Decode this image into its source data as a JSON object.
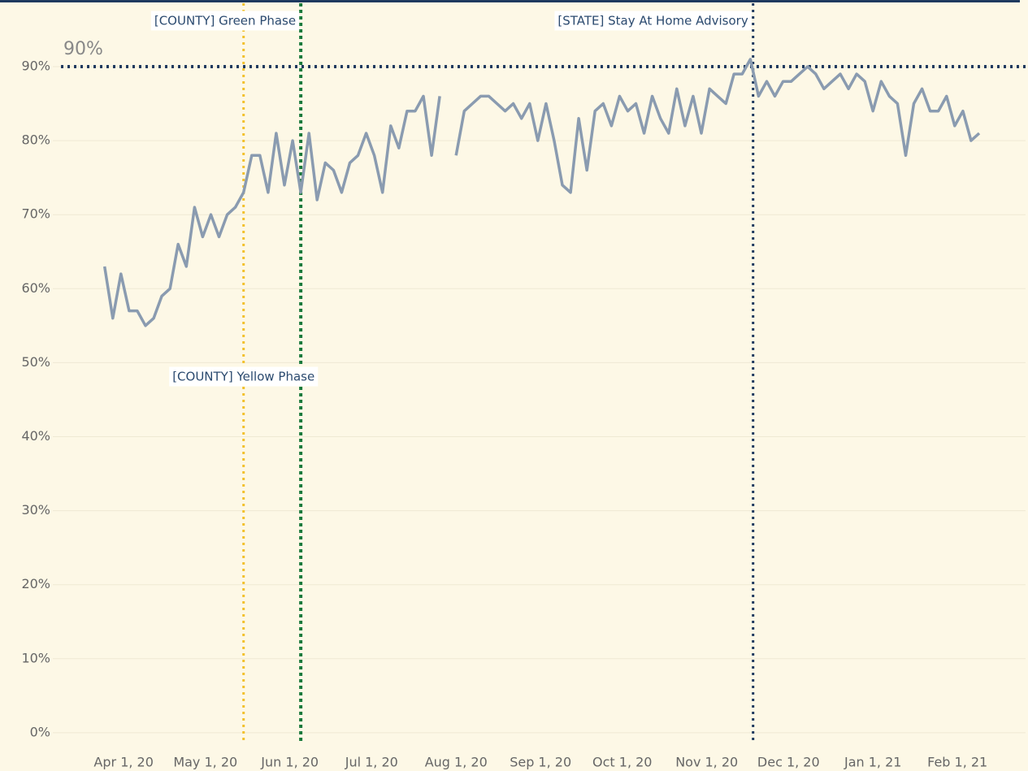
{
  "chart_data": {
    "type": "line",
    "x": [
      "2020-03-25",
      "2020-03-28",
      "2020-03-31",
      "2020-04-03",
      "2020-04-06",
      "2020-04-09",
      "2020-04-12",
      "2020-04-15",
      "2020-04-18",
      "2020-04-21",
      "2020-04-24",
      "2020-04-27",
      "2020-04-30",
      "2020-05-03",
      "2020-05-06",
      "2020-05-09",
      "2020-05-12",
      "2020-05-15",
      "2020-05-18",
      "2020-05-21",
      "2020-05-24",
      "2020-05-27",
      "2020-05-30",
      "2020-06-02",
      "2020-06-05",
      "2020-06-08",
      "2020-06-11",
      "2020-06-14",
      "2020-06-17",
      "2020-06-20",
      "2020-06-23",
      "2020-06-26",
      "2020-06-29",
      "2020-07-02",
      "2020-07-05",
      "2020-07-08",
      "2020-07-11",
      "2020-07-14",
      "2020-07-17",
      "2020-07-20",
      "2020-07-23",
      "2020-07-26",
      "2020-07-29",
      "2020-08-01",
      "2020-08-04",
      "2020-08-07",
      "2020-08-10",
      "2020-08-13",
      "2020-08-16",
      "2020-08-19",
      "2020-08-22",
      "2020-08-25",
      "2020-08-28",
      "2020-08-31",
      "2020-09-03",
      "2020-09-06",
      "2020-09-09",
      "2020-09-12",
      "2020-09-15",
      "2020-09-18",
      "2020-09-21",
      "2020-09-24",
      "2020-09-27",
      "2020-09-30",
      "2020-10-03",
      "2020-10-06",
      "2020-10-09",
      "2020-10-12",
      "2020-10-15",
      "2020-10-18",
      "2020-10-21",
      "2020-10-24",
      "2020-10-27",
      "2020-10-30",
      "2020-11-02",
      "2020-11-05",
      "2020-11-08",
      "2020-11-11",
      "2020-11-14",
      "2020-11-17",
      "2020-11-20",
      "2020-11-23",
      "2020-11-26",
      "2020-11-29",
      "2020-12-02",
      "2020-12-05",
      "2020-12-08",
      "2020-12-11",
      "2020-12-14",
      "2020-12-17",
      "2020-12-20",
      "2020-12-23",
      "2020-12-26",
      "2020-12-29",
      "2021-01-01",
      "2021-01-04",
      "2021-01-07",
      "2021-01-10",
      "2021-01-13",
      "2021-01-16",
      "2021-01-19",
      "2021-01-22",
      "2021-01-25",
      "2021-01-28",
      "2021-01-31",
      "2021-02-03",
      "2021-02-06",
      "2021-02-09"
    ],
    "values": [
      63,
      56,
      62,
      57,
      57,
      55,
      56,
      59,
      60,
      66,
      63,
      71,
      67,
      70,
      67,
      70,
      71,
      73,
      78,
      78,
      73,
      81,
      74,
      80,
      73,
      81,
      72,
      77,
      76,
      73,
      77,
      78,
      81,
      78,
      73,
      82,
      79,
      84,
      84,
      86,
      78,
      86,
      null,
      78,
      84,
      85,
      86,
      86,
      85,
      84,
      85,
      83,
      85,
      80,
      85,
      80,
      74,
      73,
      83,
      76,
      84,
      85,
      82,
      86,
      84,
      85,
      81,
      86,
      83,
      81,
      87,
      82,
      86,
      81,
      87,
      86,
      85,
      89,
      89,
      91,
      86,
      88,
      86,
      88,
      88,
      89,
      90,
      89,
      87,
      88,
      89,
      87,
      89,
      88,
      84,
      88,
      86,
      85,
      78,
      85,
      87,
      84,
      84,
      86,
      82,
      84,
      80,
      81
    ],
    "color": "#8a9bb0",
    "xlim": [
      "2020-03-06",
      "2021-02-26"
    ],
    "xticks": [
      {
        "value": "2020-04-01",
        "label": "Apr 1, 20"
      },
      {
        "value": "2020-05-01",
        "label": "May 1, 20"
      },
      {
        "value": "2020-06-01",
        "label": "Jun 1, 20"
      },
      {
        "value": "2020-07-01",
        "label": "Jul 1, 20"
      },
      {
        "value": "2020-08-01",
        "label": "Aug 1, 20"
      },
      {
        "value": "2020-09-01",
        "label": "Sep 1, 20"
      },
      {
        "value": "2020-10-01",
        "label": "Oct 1, 20"
      },
      {
        "value": "2020-11-01",
        "label": "Nov 1, 20"
      },
      {
        "value": "2020-12-01",
        "label": "Dec 1, 20"
      },
      {
        "value": "2021-01-01",
        "label": "Jan 1, 21"
      },
      {
        "value": "2021-02-01",
        "label": "Feb 1, 21"
      }
    ],
    "ylim": [
      -1,
      99
    ],
    "yticks": [
      {
        "value": 0,
        "label": "0%"
      },
      {
        "value": 10,
        "label": "10%"
      },
      {
        "value": 20,
        "label": "20%"
      },
      {
        "value": 30,
        "label": "30%"
      },
      {
        "value": 40,
        "label": "40%"
      },
      {
        "value": 50,
        "label": "50%"
      },
      {
        "value": 60,
        "label": "60%"
      },
      {
        "value": 70,
        "label": "70%"
      },
      {
        "value": 80,
        "label": "80%"
      },
      {
        "value": 90,
        "label": "90%"
      }
    ],
    "grid": true,
    "reference_lines": [
      {
        "x": "2020-05-15",
        "label": "[COUNTY] Yellow Phase",
        "color": "#f2c12e"
      },
      {
        "x": "2020-06-05",
        "label": "[COUNTY] Green Phase",
        "color": "#1a7a3c"
      },
      {
        "x": "2020-11-18",
        "label": "[STATE] Stay At Home Advisory",
        "color": "#1f3a5f"
      }
    ],
    "target_line": {
      "y": 90,
      "label": "90%",
      "color": "#1f3a5f"
    }
  }
}
